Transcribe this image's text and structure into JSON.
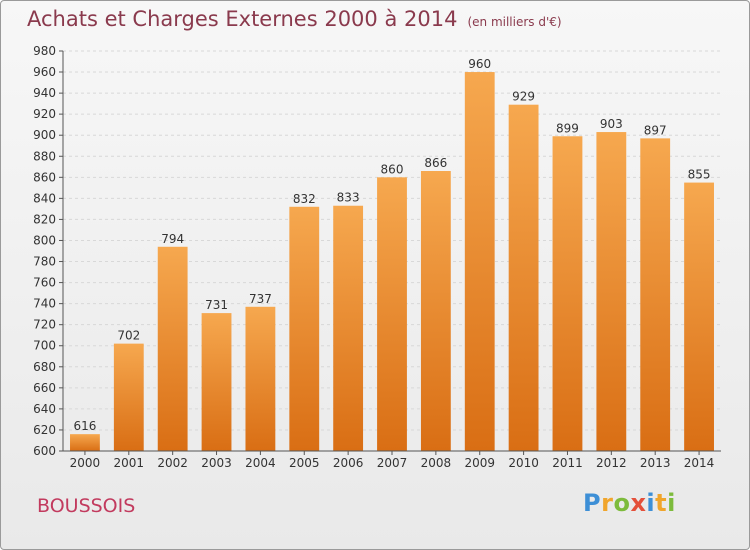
{
  "chart_data": {
    "type": "bar",
    "title": "Achats et Charges Externes 2000 à 2014",
    "unit": "(en milliers d'€)",
    "categories": [
      "2000",
      "2001",
      "2002",
      "2003",
      "2004",
      "2005",
      "2006",
      "2007",
      "2008",
      "2009",
      "2010",
      "2011",
      "2012",
      "2013",
      "2014"
    ],
    "values": [
      616,
      702,
      794,
      731,
      737,
      832,
      833,
      860,
      866,
      960,
      929,
      899,
      903,
      897,
      855
    ],
    "ylim": [
      600,
      980
    ],
    "yticks": [
      600,
      620,
      640,
      660,
      680,
      700,
      720,
      740,
      760,
      780,
      800,
      820,
      840,
      860,
      880,
      900,
      920,
      940,
      960,
      980
    ],
    "grid": true,
    "xlabel": "",
    "ylabel": "",
    "bar_color": "#f0922e"
  },
  "commune": "BOUSSOIS",
  "logo": {
    "letters": [
      "P",
      "r",
      "o",
      "x",
      "i",
      "t",
      "i"
    ],
    "colors": [
      "#3d8fd6",
      "#f0a52c",
      "#7dbb3c",
      "#e4503a",
      "#3d8fd6",
      "#f0a52c",
      "#7dbb3c"
    ]
  }
}
